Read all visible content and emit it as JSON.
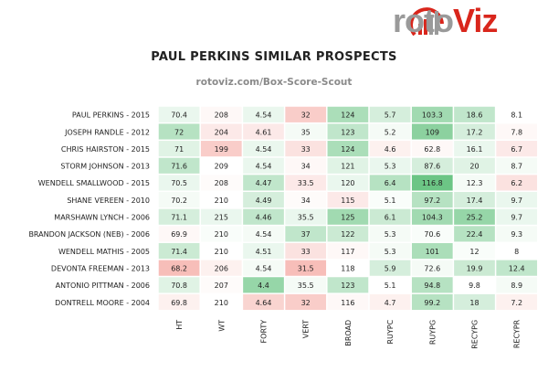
{
  "logo": {
    "text_a": "roto",
    "text_b": "Viz"
  },
  "chart_data": {
    "type": "heatmap",
    "title": "PAUL PERKINS SIMILAR PROSPECTS",
    "subtitle": "rotoviz.com/Box-Score-Scout",
    "columns": [
      "HT",
      "WT",
      "FORTY",
      "VERT",
      "BROAD",
      "RUYPC",
      "RUYPG",
      "RECYPG",
      "RECYPR"
    ],
    "rows": [
      {
        "label": "PAUL PERKINS - 2015",
        "values": [
          "70.4",
          "208",
          "4.54",
          "32",
          "124",
          "5.7",
          "103.3",
          "18.6",
          "8.1"
        ],
        "tone": [
          0.1,
          -0.05,
          0.1,
          -0.35,
          0.4,
          0.2,
          0.45,
          0.3,
          0
        ]
      },
      {
        "label": "JOSEPH RANDLE - 2012",
        "values": [
          "72",
          "204",
          "4.61",
          "35",
          "123",
          "5.2",
          "109",
          "17.2",
          "7.8"
        ],
        "tone": [
          0.35,
          -0.15,
          -0.15,
          0.05,
          0.3,
          0.05,
          0.55,
          0.2,
          -0.05
        ]
      },
      {
        "label": "CHRIS HAIRSTON - 2015",
        "values": [
          "71",
          "199",
          "4.54",
          "33",
          "124",
          "4.6",
          "62.8",
          "16.1",
          "6.7"
        ],
        "tone": [
          0.15,
          -0.35,
          0.1,
          -0.2,
          0.4,
          -0.1,
          -0.05,
          0.1,
          -0.15
        ]
      },
      {
        "label": "STORM JOHNSON - 2013",
        "values": [
          "71.6",
          "209",
          "4.54",
          "34",
          "121",
          "5.3",
          "87.6",
          "20",
          "8.7"
        ],
        "tone": [
          0.3,
          0,
          0.1,
          -0.05,
          0.15,
          0.1,
          0.2,
          0.15,
          0.05
        ]
      },
      {
        "label": "WENDELL SMALLWOOD - 2015",
        "values": [
          "70.5",
          "208",
          "4.47",
          "33.5",
          "120",
          "6.4",
          "116.8",
          "12.3",
          "6.2"
        ],
        "tone": [
          0.1,
          -0.03,
          0.3,
          -0.15,
          0.1,
          0.35,
          0.7,
          0.05,
          -0.2
        ]
      },
      {
        "label": "SHANE VEREEN - 2010",
        "values": [
          "70.2",
          "210",
          "4.49",
          "34",
          "115",
          "5.1",
          "97.2",
          "17.4",
          "9.7"
        ],
        "tone": [
          0.05,
          0,
          0.2,
          -0.03,
          -0.15,
          0.03,
          0.35,
          0.2,
          0.1
        ]
      },
      {
        "label": "MARSHAWN LYNCH - 2006",
        "values": [
          "71.1",
          "215",
          "4.46",
          "35.5",
          "125",
          "6.1",
          "104.3",
          "25.2",
          "9.7"
        ],
        "tone": [
          0.2,
          0.1,
          0.3,
          0.1,
          0.45,
          0.25,
          0.45,
          0.5,
          0.1
        ]
      },
      {
        "label": "BRANDON JACKSON (NEB) - 2006",
        "values": [
          "69.9",
          "210",
          "4.54",
          "37",
          "122",
          "5.3",
          "70.6",
          "22.4",
          "9.3"
        ],
        "tone": [
          -0.05,
          0.03,
          0.05,
          0.3,
          0.25,
          0.05,
          0.03,
          0.35,
          0.05
        ]
      },
      {
        "label": "WENDELL MATHIS - 2005",
        "values": [
          "71.4",
          "210",
          "4.51",
          "33",
          "117",
          "5.3",
          "101",
          "12",
          "8"
        ],
        "tone": [
          0.25,
          0,
          0.1,
          -0.2,
          -0.05,
          0.05,
          0.4,
          0.03,
          0
        ]
      },
      {
        "label": "DEVONTA FREEMAN - 2013",
        "values": [
          "68.2",
          "206",
          "4.54",
          "31.5",
          "118",
          "5.9",
          "72.6",
          "19.9",
          "12.4"
        ],
        "tone": [
          -0.45,
          -0.1,
          0.05,
          -0.45,
          0,
          0.2,
          0.05,
          0.25,
          0.3
        ]
      },
      {
        "label": "ANTONIO PITTMAN - 2006",
        "values": [
          "70.8",
          "207",
          "4.4",
          "35.5",
          "123",
          "5.1",
          "94.8",
          "9.8",
          "8.9"
        ],
        "tone": [
          0.15,
          -0.03,
          0.5,
          0.05,
          0.3,
          0,
          0.35,
          0,
          0.05
        ]
      },
      {
        "label": "DONTRELL MOORE - 2004",
        "values": [
          "69.8",
          "210",
          "4.64",
          "32",
          "116",
          "4.7",
          "99.2",
          "18",
          "7.2"
        ],
        "tone": [
          -0.1,
          0,
          -0.3,
          -0.35,
          -0.05,
          -0.1,
          0.35,
          0.2,
          -0.1
        ]
      }
    ],
    "colors": {
      "positive": "#6cc585",
      "negative": "#f29a92",
      "neutral": "#ffffff"
    }
  }
}
